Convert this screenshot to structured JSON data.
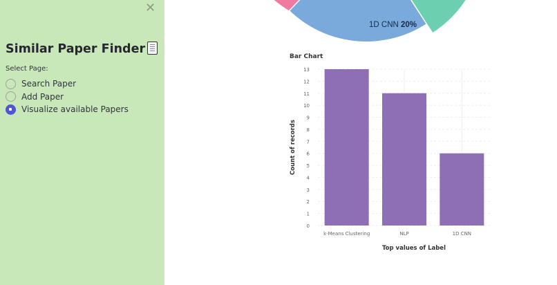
{
  "sidebar": {
    "close_icon": "close-icon",
    "title": "Similar Paper Finder",
    "title_icon": "document-icon",
    "select_label": "Select Page:",
    "options": [
      {
        "label": "Search Paper",
        "checked": false
      },
      {
        "label": "Add Paper",
        "checked": false
      },
      {
        "label": "Visualize available Papers",
        "checked": true
      }
    ],
    "accent_color": "#5055d6",
    "background_color": "#c9e8b9"
  },
  "pie": {
    "visible_label": "1D CNN",
    "visible_percent": "20%",
    "colors": {
      "blue": "#7aaadb",
      "green": "#6ccfb0",
      "pink": "#f07aa0"
    }
  },
  "chart_data": {
    "type": "bar",
    "title": "Bar Chart",
    "categories": [
      "k-Means Clustering",
      "NLP",
      "1D CNN"
    ],
    "values": [
      13,
      11,
      6
    ],
    "xlabel": "Top values of Label",
    "ylabel": "Count of records",
    "ylim": [
      0,
      13
    ],
    "yticks": [
      0,
      1,
      2,
      3,
      4,
      5,
      6,
      7,
      8,
      9,
      10,
      11,
      12,
      13
    ],
    "grid": true,
    "bar_color": "#8e6fb5"
  }
}
